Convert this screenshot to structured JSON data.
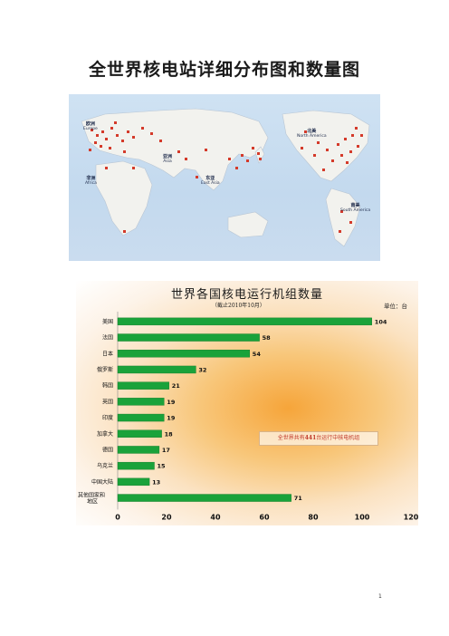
{
  "document": {
    "title": "全世界核电站详细分布图和数量图",
    "page_number": "1"
  },
  "map": {
    "labels": [
      {
        "id": "europe",
        "zh": "欧洲",
        "en": "Europe"
      },
      {
        "id": "africa",
        "zh": "非洲",
        "en": "Africa"
      },
      {
        "id": "asia",
        "zh": "亚洲",
        "en": "Asia"
      },
      {
        "id": "east-asia",
        "zh": "东亚",
        "en": "East Asia"
      },
      {
        "id": "north-america",
        "zh": "北美",
        "en": "North America"
      },
      {
        "id": "south-america",
        "zh": "南美",
        "en": "South America"
      }
    ],
    "colors": {
      "ocean": "#c6dbef",
      "land": "#f1f1ec",
      "plant": "#d43a2a"
    }
  },
  "chart": {
    "title": "世界各国核电运行机组数量",
    "subtitle": "（截止2010年10月）",
    "unit": "单位：台",
    "note": "全世界共有441台运行中核电机组",
    "note_highlight": "441",
    "colors": {
      "bar": "#1aa23a",
      "bar_edge": "#0f7a27",
      "axis_text": "#111"
    }
  },
  "chart_data": {
    "type": "bar",
    "orientation": "horizontal",
    "categories": [
      "美国",
      "法国",
      "日本",
      "俄罗斯",
      "韩国",
      "英国",
      "印度",
      "加拿大",
      "德国",
      "乌克兰",
      "中国大陆",
      "其他国家和地区"
    ],
    "values": [
      104,
      58,
      54,
      32,
      21,
      19,
      19,
      18,
      17,
      15,
      13,
      71
    ],
    "title": "世界各国核电运行机组数量",
    "xlabel": "",
    "ylabel": "",
    "xlim": [
      0,
      120
    ],
    "xticks": [
      0,
      20,
      40,
      60,
      80,
      100,
      120
    ],
    "grid": false
  }
}
